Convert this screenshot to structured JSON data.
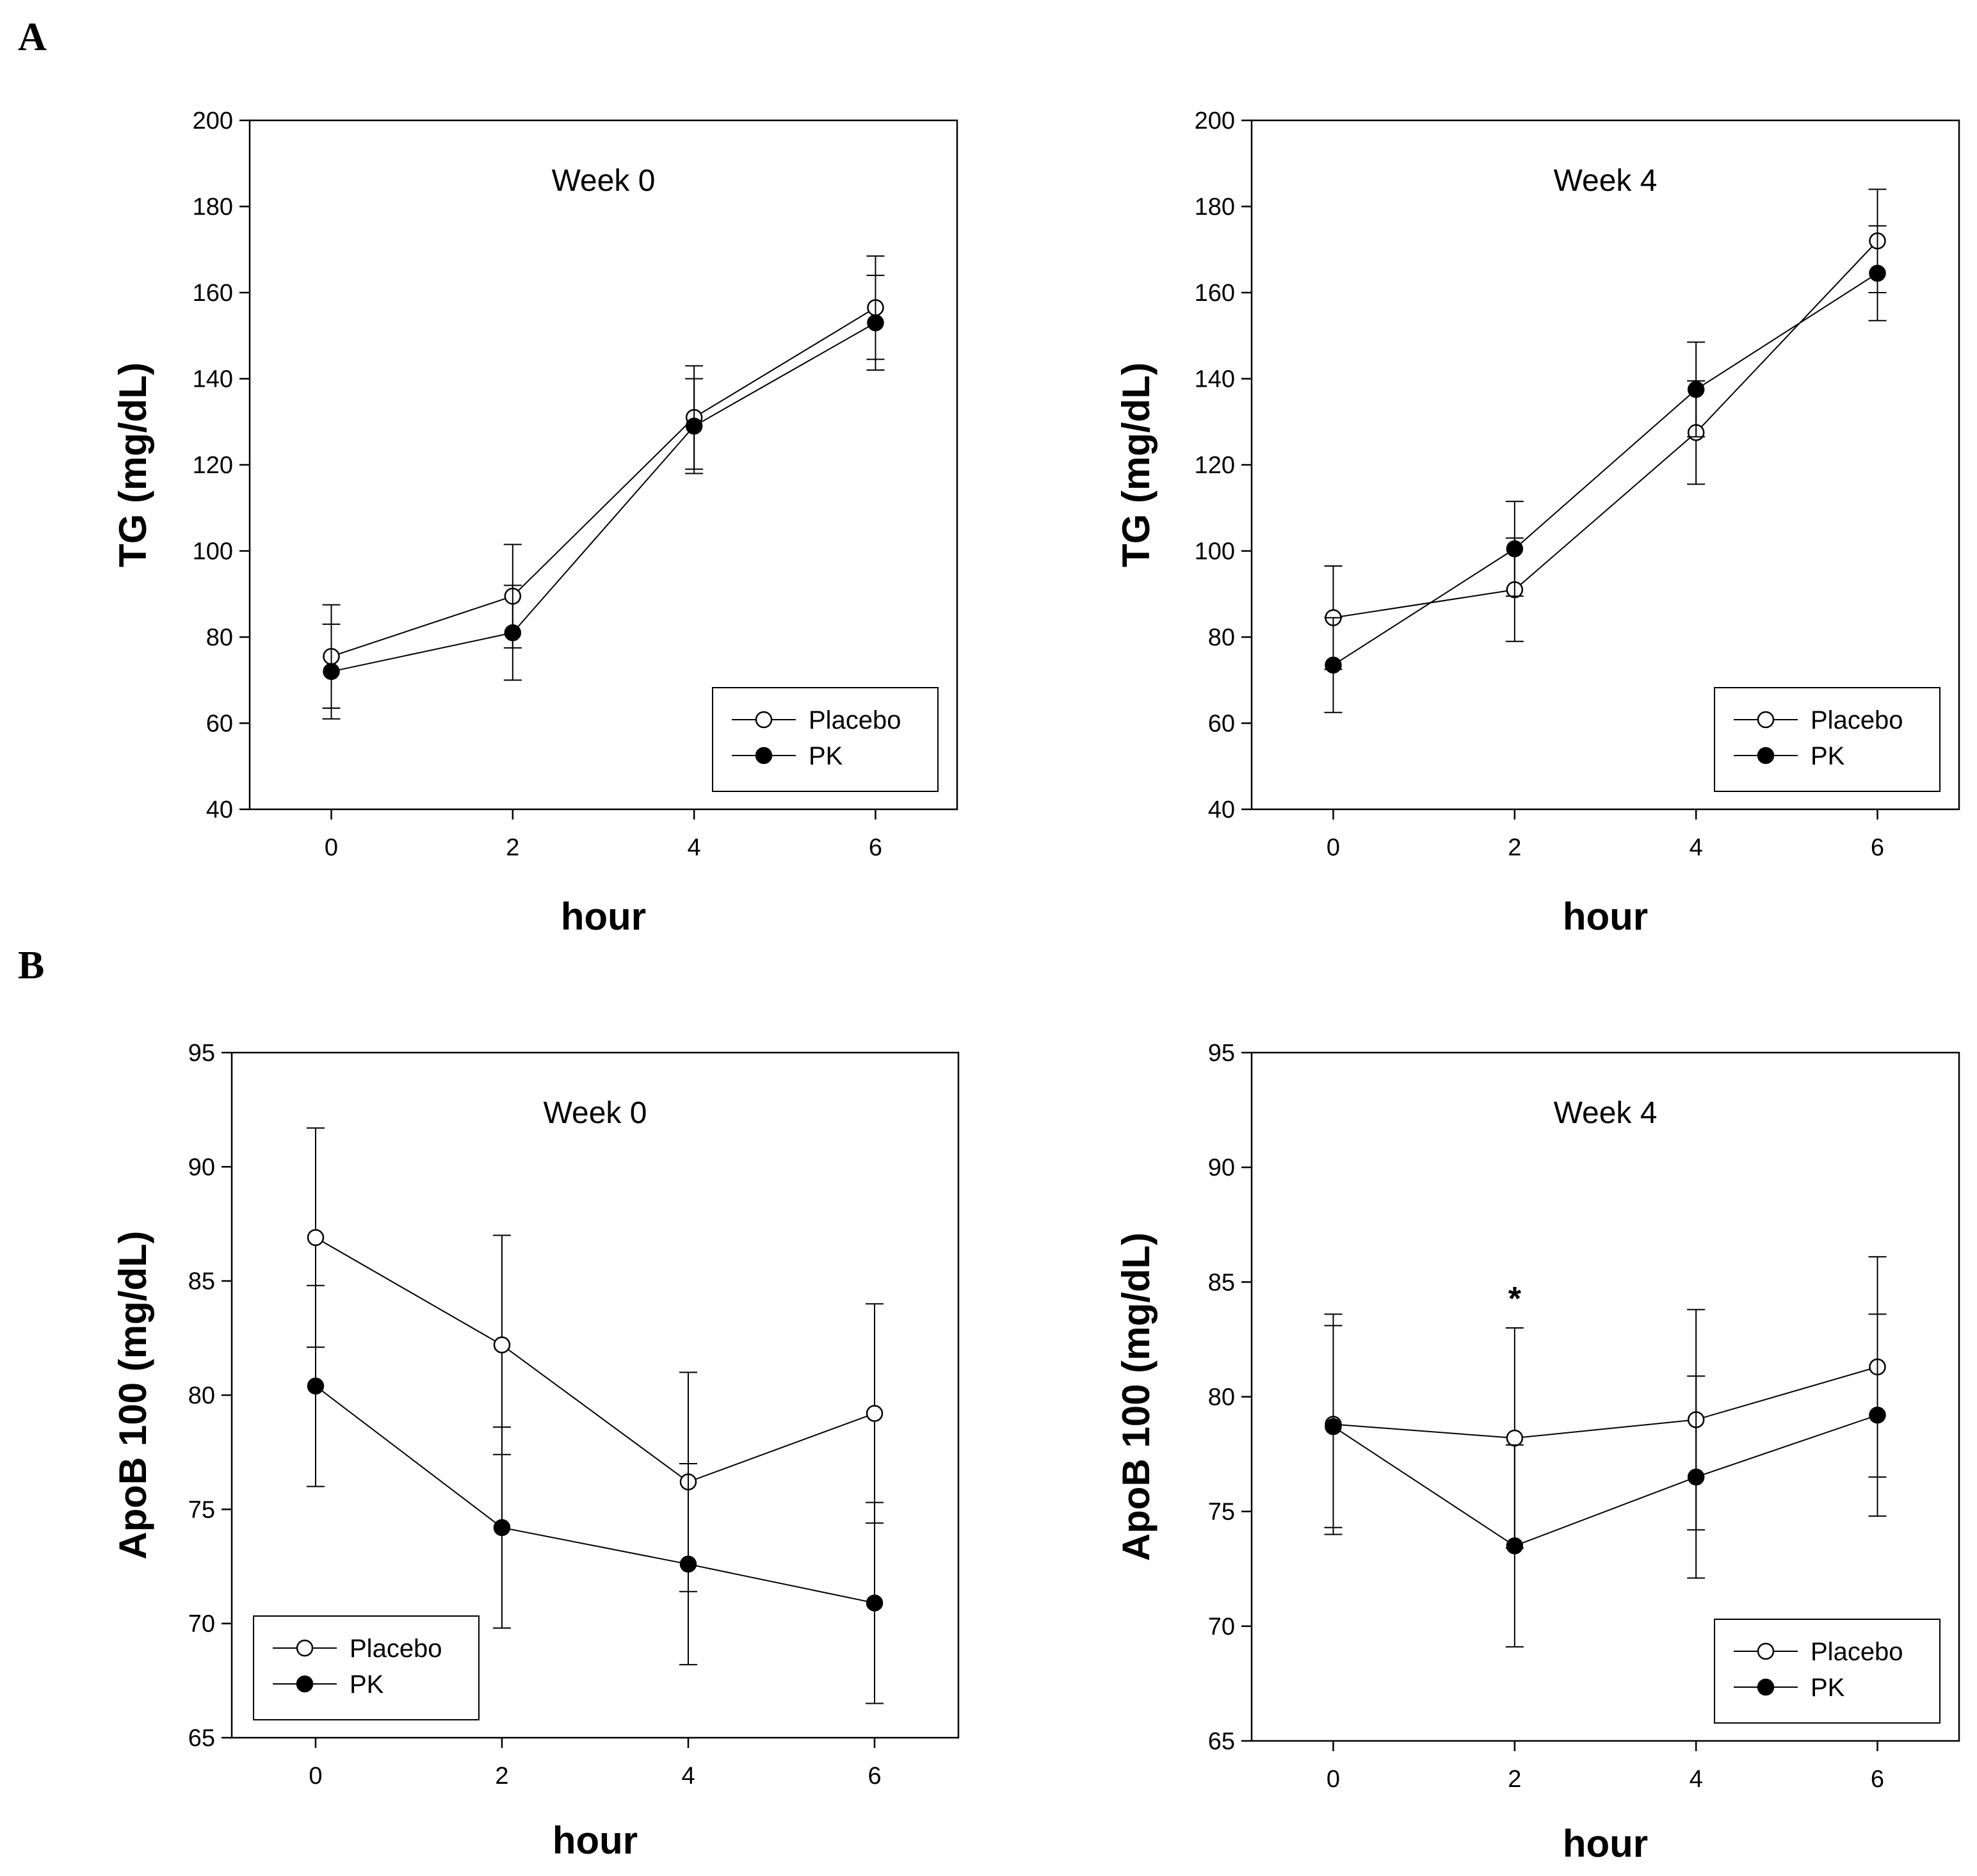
{
  "panel_labels": [
    "A",
    "B"
  ],
  "chart_data": [
    {
      "type": "line",
      "panel": "A",
      "title": "Week 0",
      "xlabel": "hour",
      "ylabel": "TG (mg/dL)",
      "x": [
        0,
        2,
        4,
        6
      ],
      "xlim": [
        -0.9,
        6.9
      ],
      "ylim": [
        40,
        200
      ],
      "yticks": [
        40,
        60,
        80,
        100,
        120,
        140,
        160,
        180,
        200
      ],
      "legend_position": "bottom-right",
      "series": [
        {
          "name": "Placebo",
          "marker": "open-circle",
          "values": [
            75.5,
            89.5,
            131.0,
            156.5
          ],
          "errors": [
            12,
            12,
            12,
            12
          ]
        },
        {
          "name": "PK",
          "marker": "filled-circle",
          "values": [
            72.0,
            81.0,
            129.0,
            153.0
          ],
          "errors": [
            11,
            11,
            11,
            11
          ]
        }
      ],
      "annotations": []
    },
    {
      "type": "line",
      "panel": "A",
      "title": "Week 4",
      "xlabel": "hour",
      "ylabel": "TG (mg/dL)",
      "x": [
        0,
        2,
        4,
        6
      ],
      "xlim": [
        -0.9,
        6.9
      ],
      "ylim": [
        40,
        200
      ],
      "yticks": [
        40,
        60,
        80,
        100,
        120,
        140,
        160,
        180,
        200
      ],
      "legend_position": "bottom-right",
      "series": [
        {
          "name": "Placebo",
          "marker": "open-circle",
          "values": [
            84.5,
            91.0,
            127.5,
            172.0
          ],
          "errors": [
            12,
            12,
            12,
            12
          ]
        },
        {
          "name": "PK",
          "marker": "filled-circle",
          "values": [
            73.5,
            100.5,
            137.5,
            164.5
          ],
          "errors": [
            11,
            11,
            11,
            11
          ]
        }
      ],
      "annotations": []
    },
    {
      "type": "line",
      "panel": "B",
      "title": "Week 0",
      "xlabel": "hour",
      "ylabel": "ApoB 100 (mg/dL)",
      "x": [
        0,
        2,
        4,
        6
      ],
      "xlim": [
        -0.9,
        6.9
      ],
      "ylim": [
        65,
        95
      ],
      "yticks": [
        65,
        70,
        75,
        80,
        85,
        90,
        95
      ],
      "legend_position": "bottom-left",
      "series": [
        {
          "name": "Placebo",
          "marker": "open-circle",
          "values": [
            86.9,
            82.2,
            76.2,
            79.2
          ],
          "errors": [
            4.8,
            4.8,
            4.8,
            4.8
          ]
        },
        {
          "name": "PK",
          "marker": "filled-circle",
          "values": [
            80.4,
            74.2,
            72.6,
            70.9
          ],
          "errors": [
            4.4,
            4.4,
            4.4,
            4.4
          ]
        }
      ],
      "annotations": []
    },
    {
      "type": "line",
      "panel": "B",
      "title": "Week 4",
      "xlabel": "hour",
      "ylabel": "ApoB 100 (mg/dL)",
      "x": [
        0,
        2,
        4,
        6
      ],
      "xlim": [
        -0.9,
        6.9
      ],
      "ylim": [
        65,
        95
      ],
      "yticks": [
        65,
        70,
        75,
        80,
        85,
        90,
        95
      ],
      "legend_position": "bottom-right",
      "series": [
        {
          "name": "Placebo",
          "marker": "open-circle",
          "values": [
            78.8,
            78.2,
            79.0,
            81.3
          ],
          "errors": [
            4.8,
            4.8,
            4.8,
            4.8
          ]
        },
        {
          "name": "PK",
          "marker": "filled-circle",
          "values": [
            78.7,
            73.5,
            76.5,
            79.2
          ],
          "errors": [
            4.4,
            4.4,
            4.4,
            4.4
          ]
        }
      ],
      "annotations": [
        {
          "text": "*",
          "x": 2
        }
      ]
    }
  ]
}
